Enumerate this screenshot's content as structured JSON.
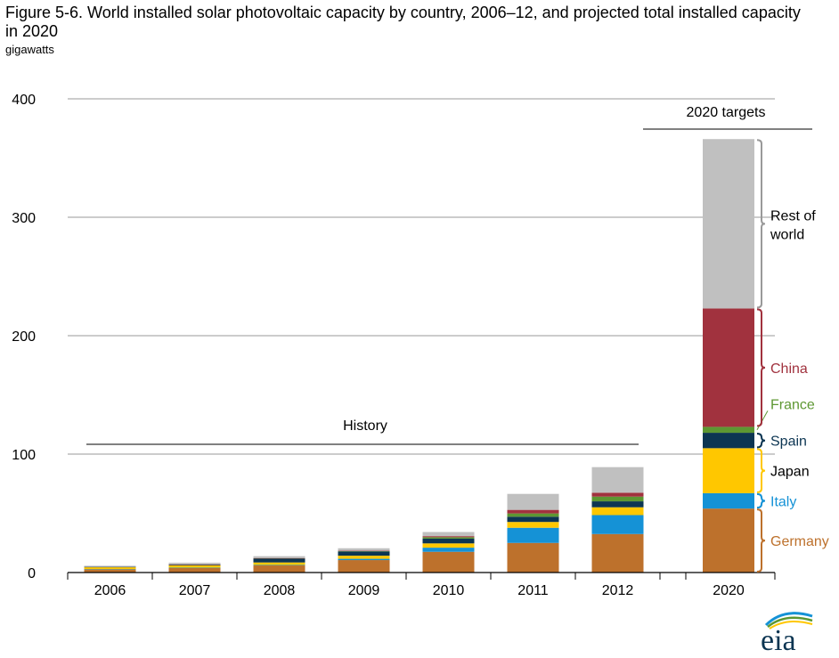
{
  "title": "Figure 5-6. World installed solar photovoltaic capacity by country, 2006–12, and projected total installed capacity in 2020",
  "units": "gigawatts",
  "logo_text": "eia",
  "chart_data": {
    "type": "bar",
    "stacked": true,
    "categories": [
      "2006",
      "2007",
      "2008",
      "2009",
      "2010",
      "2011",
      "2012",
      "2020"
    ],
    "ylim": [
      0,
      400
    ],
    "yticks": [
      "0",
      "100",
      "200",
      "300",
      "400"
    ],
    "grid": true,
    "annotations": {
      "history": "History",
      "targets": "2020 targets"
    },
    "series": [
      {
        "name": "Germany",
        "color": "#bd712c",
        "values": [
          2.8,
          4,
          6,
          10.5,
          17.5,
          25,
          32.5,
          54
        ]
      },
      {
        "name": "Italy",
        "color": "#1592d6",
        "values": [
          0.1,
          0.1,
          0.4,
          1.1,
          3.5,
          12.8,
          16,
          13
        ]
      },
      {
        "name": "Japan",
        "color": "#ffc700",
        "values": [
          1.7,
          1.9,
          2.1,
          2.6,
          3.6,
          4.9,
          6.6,
          38
        ]
      },
      {
        "name": "Spain",
        "color": "#0c3552",
        "values": [
          0.2,
          0.7,
          3.4,
          3.6,
          4,
          4.4,
          5,
          13
        ]
      },
      {
        "name": "France",
        "color": "#5d9732",
        "values": [
          0,
          0.1,
          0.2,
          0.4,
          1.2,
          2.8,
          4,
          5
        ]
      },
      {
        "name": "China",
        "color": "#a1323e",
        "values": [
          0,
          0.1,
          0.1,
          0.3,
          0.9,
          3,
          3.3,
          100
        ]
      },
      {
        "name": "Rest of world",
        "color": "#c0c0c0",
        "values": [
          0.9,
          1.4,
          1.6,
          2,
          3.5,
          13.5,
          21.6,
          143
        ]
      }
    ],
    "legend_labels": [
      {
        "text": "Rest of\nworld",
        "color": "#000000"
      },
      {
        "text": "China",
        "color": "#a1323e"
      },
      {
        "text": "France",
        "color": "#5d9732"
      },
      {
        "text": "Spain",
        "color": "#0c3552"
      },
      {
        "text": "Japan",
        "color": "#000000"
      },
      {
        "text": "Italy",
        "color": "#1592d6"
      },
      {
        "text": "Germany",
        "color": "#bd712c"
      }
    ]
  }
}
